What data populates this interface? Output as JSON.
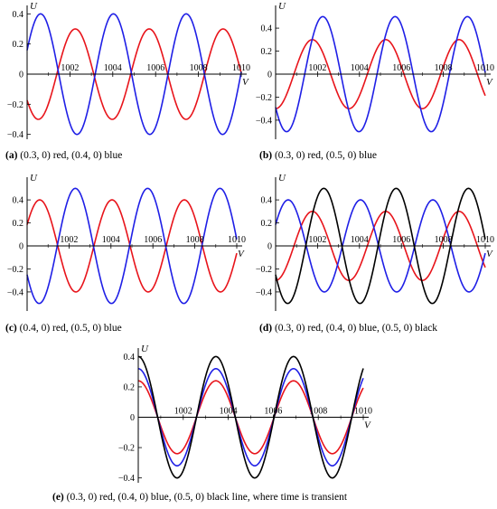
{
  "figure": {
    "panels": [
      {
        "id": "a",
        "caption": {
          "tag": "(a)",
          "text": "(0.3, 0) red, (0.4, 0) blue"
        },
        "chart_data": {
          "type": "line",
          "xlabel": "V",
          "ylabel": "U",
          "xlim": [
            1000,
            1010
          ],
          "ylim": [
            -0.42,
            0.42
          ],
          "xticks": [
            1002,
            1004,
            1006,
            1008,
            1010
          ],
          "yticks": [
            0.4,
            0.2,
            0,
            -0.2,
            -0.4
          ],
          "xtick_labels": [
            "1002",
            "1004",
            "1006",
            "1008",
            "1010"
          ],
          "ytick_labels": [
            "0.4",
            "0.2",
            "0",
            "−0.2",
            "−0.4"
          ],
          "series": [
            {
              "color": "#e8141b",
              "amplitude": 0.3,
              "period": 3.45,
              "phase_x": 1002.25
            },
            {
              "color": "#1f1fe6",
              "amplitude": 0.4,
              "period": 3.4,
              "phase_x": 1000.63
            }
          ]
        }
      },
      {
        "id": "b",
        "caption": {
          "tag": "(b)",
          "text": "(0.3, 0) red, (0.5, 0) blue"
        },
        "chart_data": {
          "type": "line",
          "xlabel": "V",
          "ylabel": "U",
          "xlim": [
            1000,
            1010
          ],
          "ylim": [
            -0.55,
            0.55
          ],
          "xticks": [
            1002,
            1004,
            1006,
            1008,
            1010
          ],
          "yticks": [
            0.4,
            0.2,
            0,
            -0.2,
            -0.4
          ],
          "xtick_labels": [
            "1002",
            "1004",
            "1006",
            "1008",
            "1010"
          ],
          "ytick_labels": [
            "0.4",
            "0.2",
            "0",
            "−0.2",
            "−0.4"
          ],
          "series": [
            {
              "color": "#e8141b",
              "amplitude": 0.3,
              "period": 3.5,
              "phase_x": 1001.75
            },
            {
              "color": "#1f1fe6",
              "amplitude": 0.5,
              "period": 3.45,
              "phase_x": 1002.25
            }
          ]
        }
      },
      {
        "id": "c",
        "caption": {
          "tag": "(c)",
          "text": "(0.4, 0) red, (0.5, 0) blue"
        },
        "chart_data": {
          "type": "line",
          "xlabel": "V",
          "ylabel": "U",
          "xlim": [
            1000,
            1010
          ],
          "ylim": [
            -0.55,
            0.55
          ],
          "xticks": [
            1002,
            1004,
            1006,
            1008,
            1010
          ],
          "yticks": [
            0.4,
            0.2,
            0,
            -0.2,
            -0.4
          ],
          "xtick_labels": [
            "1002",
            "1004",
            "1006",
            "1008",
            "1010"
          ],
          "ytick_labels": [
            "0.4",
            "0.2",
            "0",
            "−0.2",
            "−0.4"
          ],
          "series": [
            {
              "color": "#e8141b",
              "amplitude": 0.4,
              "period": 3.45,
              "phase_x": 1000.6
            },
            {
              "color": "#1f1fe6",
              "amplitude": 0.5,
              "period": 3.45,
              "phase_x": 1002.3
            }
          ]
        }
      },
      {
        "id": "d",
        "caption": {
          "tag": "(d)",
          "text": "(0.3, 0) red, (0.4, 0) blue, (0.5, 0) black"
        },
        "chart_data": {
          "type": "line",
          "xlabel": "V",
          "ylabel": "U",
          "xlim": [
            1000,
            1010
          ],
          "ylim": [
            -0.55,
            0.55
          ],
          "xticks": [
            1002,
            1004,
            1006,
            1008,
            1010
          ],
          "yticks": [
            0.4,
            0.2,
            0,
            -0.2,
            -0.4
          ],
          "xtick_labels": [
            "1002",
            "1004",
            "1006",
            "1008",
            "1010"
          ],
          "ytick_labels": [
            "0.4",
            "0.2",
            "0",
            "−0.2",
            "−0.4"
          ],
          "series": [
            {
              "color": "#e8141b",
              "amplitude": 0.3,
              "period": 3.5,
              "phase_x": 1001.75
            },
            {
              "color": "#1f1fe6",
              "amplitude": 0.4,
              "period": 3.45,
              "phase_x": 1000.6
            },
            {
              "color": "#000000",
              "amplitude": 0.5,
              "period": 3.45,
              "phase_x": 1002.3
            }
          ]
        }
      },
      {
        "id": "e",
        "caption": {
          "tag": "(e)",
          "text": "(0.3, 0) red, (0.4, 0) blue, (0.5, 0) black line, where time is transient"
        },
        "chart_data": {
          "type": "line",
          "xlabel": "V",
          "ylabel": "U",
          "xlim": [
            1000,
            1010
          ],
          "ylim": [
            -0.42,
            0.42
          ],
          "xticks": [
            1002,
            1004,
            1006,
            1008,
            1010
          ],
          "yticks": [
            0.4,
            0.2,
            0,
            -0.2,
            -0.4
          ],
          "xtick_labels": [
            "1002",
            "1004",
            "1006",
            "1008",
            "1010"
          ],
          "ytick_labels": [
            "0.4",
            "0.2",
            "0",
            "−0.2",
            "−0.4"
          ],
          "series": [
            {
              "color": "#e8141b",
              "amplitude": 0.24,
              "period": 3.45,
              "phase_x": 1000.0
            },
            {
              "color": "#1f1fe6",
              "amplitude": 0.32,
              "period": 3.45,
              "phase_x": 1000.0
            },
            {
              "color": "#000000",
              "amplitude": 0.4,
              "period": 3.45,
              "phase_x": 1000.0
            }
          ]
        }
      }
    ]
  }
}
